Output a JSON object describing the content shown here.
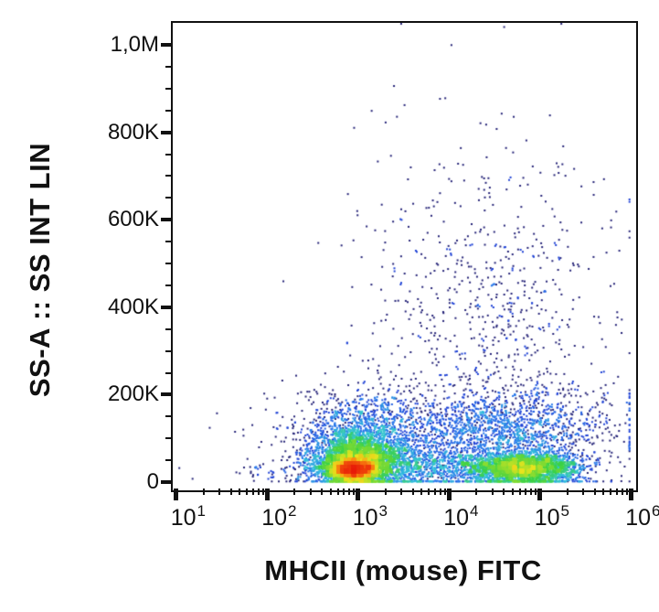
{
  "chart_data": {
    "type": "scatter",
    "subtype": "flow-cytometry-pseudocolor-density-dot-plot",
    "title": "",
    "xlabel": "MHCII (mouse) FITC",
    "ylabel": "SS-A :: SS INT LIN",
    "x_scale": "log10",
    "x_range": [
      10,
      1000000
    ],
    "y_scale": "linear",
    "y_range": [
      0,
      1060000
    ],
    "x_ticks": [
      10,
      100,
      1000,
      10000,
      100000,
      1000000
    ],
    "x_tick_base": "10",
    "x_tick_exponents": [
      "1",
      "2",
      "3",
      "4",
      "5",
      "6"
    ],
    "x_minor_ticks_per_decade": [
      2,
      3,
      4,
      5,
      6,
      7,
      8,
      9
    ],
    "y_ticks": [
      0,
      200000,
      400000,
      600000,
      800000,
      1000000
    ],
    "y_tick_labels": [
      "0",
      "200K",
      "400K",
      "600K",
      "800K",
      "1,0M"
    ],
    "y_minor_tick_step": 50000,
    "grid": "off",
    "legend": "none",
    "colormap": "pseudocolor by local event density: navy (single events) -> blue -> cyan -> green -> yellow -> orange -> red (densest)",
    "colormap_stops": [
      [
        0.0,
        "#262478"
      ],
      [
        0.14,
        "#1F3FD4"
      ],
      [
        0.3,
        "#2878EB"
      ],
      [
        0.44,
        "#32C3DC"
      ],
      [
        0.56,
        "#3CD246"
      ],
      [
        0.68,
        "#8FDD30"
      ],
      [
        0.76,
        "#E8E520"
      ],
      [
        0.84,
        "#FA9C14"
      ],
      [
        0.91,
        "#F2550E"
      ],
      [
        1.0,
        "#E81C0A"
      ]
    ],
    "populations": [
      {
        "name": "mhcii-intermediate-core (red/orange hotspot)",
        "n": 2600,
        "cx_log": 2.95,
        "sx_log": 0.13,
        "cy": 30000,
        "sy": 13000
      },
      {
        "name": "mhcii-intermediate-body (yellow/green ring)",
        "n": 3400,
        "cx_log": 3.02,
        "sx_log": 0.26,
        "cy": 48000,
        "sy": 32000
      },
      {
        "name": "mhcii-intermediate-halo (blue, up to ~200K SSC)",
        "n": 1100,
        "cx_log": 3.08,
        "sx_log": 0.38,
        "cy": 110000,
        "sy": 50000
      },
      {
        "name": "low-ssc bridge between populations",
        "n": 900,
        "cx_log": 3.85,
        "sx_log": 0.5,
        "cy": 35000,
        "sy": 25000
      },
      {
        "name": "mhcii-high population (green/yellow, ~10^4.8)",
        "n": 2700,
        "cx_log": 4.83,
        "sx_log": 0.3,
        "cy": 32000,
        "sy": 18000
      },
      {
        "name": "mhcii-high halo (blue)",
        "n": 1000,
        "cx_log": 4.72,
        "sx_log": 0.45,
        "cy": 95000,
        "sy": 60000
      },
      {
        "name": "mid-ssc blue band ~130K",
        "n": 800,
        "cx_log": 4.25,
        "sx_log": 0.85,
        "cy": 135000,
        "sy": 40000
      },
      {
        "name": "high-ssc diffuse scatter (sparse navy dots up to 1M)",
        "n": 880,
        "cx_log": 4.45,
        "sx_log": 0.68,
        "cy": 315000,
        "sy": 235000
      },
      {
        "name": "left low-ssc debris (sparse, 10^1-10^2.5)",
        "n": 120,
        "cx_log": 2.45,
        "sx_log": 0.55,
        "cy": 22000,
        "sy": 16000
      }
    ]
  }
}
